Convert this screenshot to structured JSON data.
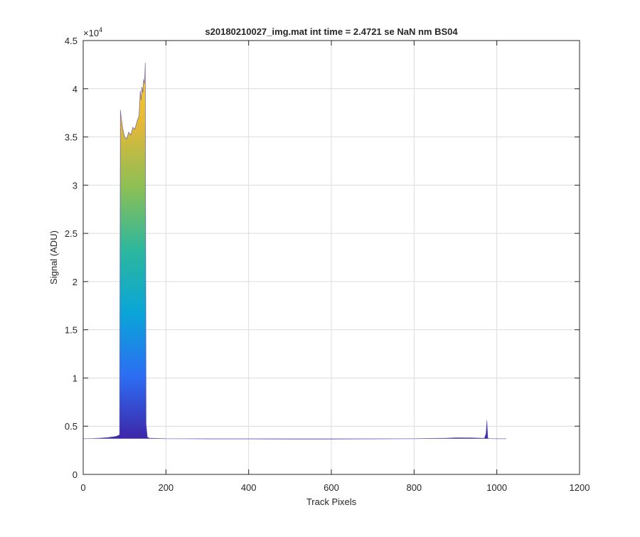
{
  "chart_data": {
    "type": "area",
    "title": "s20180210027_img.mat int time = 2.4721 se  NaN nm BS04",
    "xlabel": "Track Pixels",
    "ylabel": "Signal (ADU)",
    "xlim": [
      0,
      1200
    ],
    "ylim": [
      0,
      45000
    ],
    "x_ticks": [
      0,
      200,
      400,
      600,
      800,
      1000,
      1200
    ],
    "x_tick_labels": [
      "0",
      "200",
      "400",
      "600",
      "800",
      "1000",
      "1200"
    ],
    "y_ticks": [
      0,
      5000,
      10000,
      15000,
      20000,
      25000,
      30000,
      35000,
      40000,
      45000
    ],
    "y_tick_labels": [
      "0",
      "0.5",
      "1",
      "1.5",
      "2",
      "2.5",
      "3",
      "3.5",
      "4",
      "4.5"
    ],
    "y_exponent_base": "×10",
    "y_exponent_power": "4",
    "grid": true,
    "colormap": [
      "#3e26a8",
      "#2c6ef3",
      "#0aa5d8",
      "#2cb79e",
      "#8bbf56",
      "#e2b83a",
      "#f9d422"
    ],
    "baseline": 3700,
    "series": [
      {
        "x": [
          0,
          20,
          40,
          60,
          80,
          88,
          90,
          92,
          95,
          100,
          105,
          110,
          115,
          120,
          125,
          130,
          135,
          138,
          140,
          142,
          144,
          146,
          148,
          150,
          152,
          155,
          160,
          200,
          300,
          400,
          500,
          600,
          700,
          800,
          880,
          900,
          940,
          960,
          970,
          974,
          976,
          978,
          982,
          1000,
          1023
        ],
        "y": [
          3700,
          3720,
          3760,
          3820,
          3950,
          4100,
          37800,
          37000,
          36000,
          35000,
          34800,
          35500,
          35200,
          36000,
          35800,
          36600,
          37200,
          39800,
          38800,
          40200,
          39600,
          41000,
          40500,
          42700,
          5200,
          3850,
          3760,
          3700,
          3680,
          3680,
          3670,
          3670,
          3680,
          3700,
          3760,
          3800,
          3790,
          3760,
          3750,
          4200,
          5600,
          3760,
          3720,
          3700,
          3700
        ]
      }
    ]
  }
}
